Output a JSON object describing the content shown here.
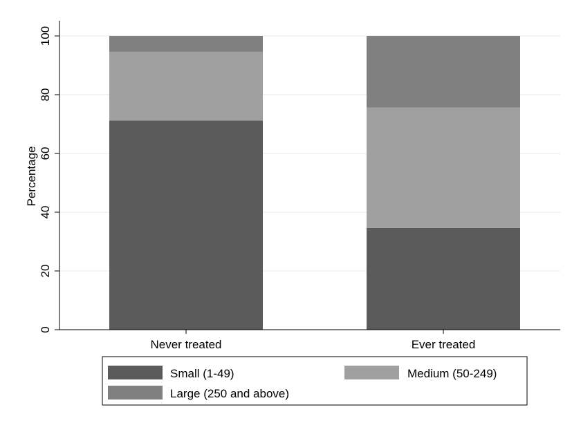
{
  "chart_data": {
    "type": "bar",
    "stacked": true,
    "orientation": "vertical",
    "categories": [
      "Never treated",
      "Ever treated"
    ],
    "series": [
      {
        "name": "Small (1-49)",
        "values": [
          71.2,
          34.6
        ],
        "color": "#5b5b5b"
      },
      {
        "name": "Medium (50-249)",
        "values": [
          23.4,
          41.0
        ],
        "color": "#a0a0a0"
      },
      {
        "name": "Large (250 and above)",
        "values": [
          5.4,
          24.4
        ],
        "color": "#808080"
      }
    ],
    "xlabel": "",
    "ylabel": "Percentage",
    "ylim": [
      0,
      100
    ],
    "yticks": [
      "0",
      "20",
      "40",
      "60",
      "80",
      "100"
    ],
    "grid": true,
    "legend_position": "bottom"
  }
}
